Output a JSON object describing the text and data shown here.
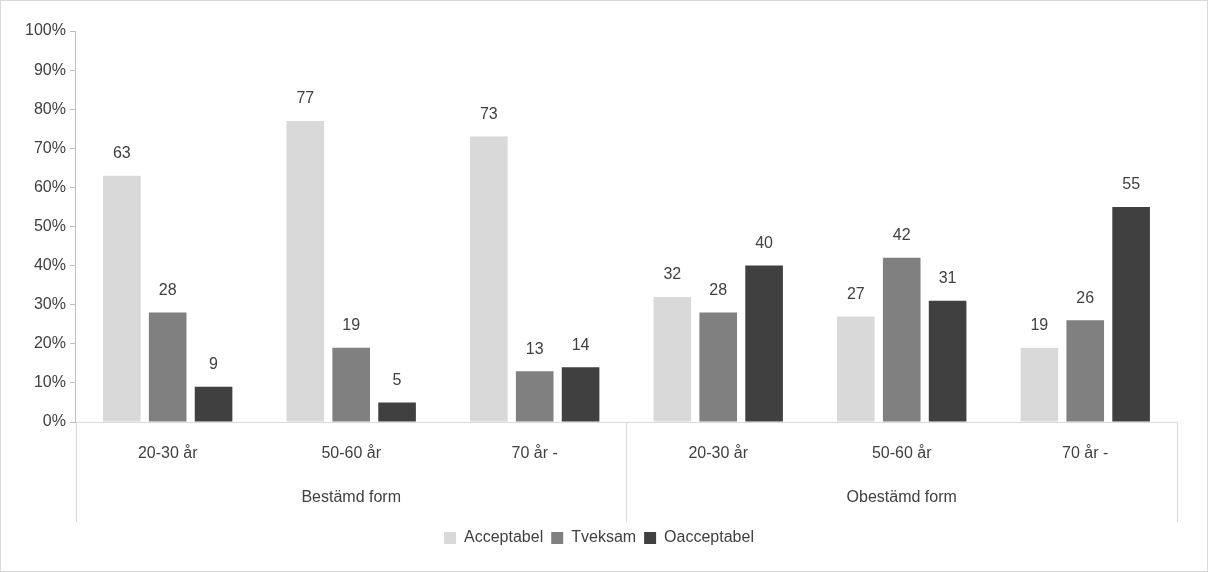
{
  "chart_data": {
    "type": "bar",
    "categories": [
      "20-30 år",
      "50-60 år",
      "70 år -",
      "20-30 år",
      "50-60 år",
      "70 år -"
    ],
    "series": [
      {
        "name": "Acceptabel",
        "color": "#d9d9d9",
        "values": [
          63,
          77,
          73,
          32,
          27,
          19
        ]
      },
      {
        "name": "Tveksam",
        "color": "#808080",
        "values": [
          28,
          19,
          13,
          28,
          42,
          26
        ]
      },
      {
        "name": "Oacceptabel",
        "color": "#404040",
        "values": [
          9,
          5,
          14,
          40,
          31,
          55
        ]
      }
    ],
    "ylim": [
      0,
      100
    ],
    "yticks": [
      {
        "value": 0,
        "label": "0%"
      },
      {
        "value": 10,
        "label": "10%"
      },
      {
        "value": 20,
        "label": "20%"
      },
      {
        "value": 30,
        "label": "30%"
      },
      {
        "value": 40,
        "label": "40%"
      },
      {
        "value": 50,
        "label": "50%"
      },
      {
        "value": 60,
        "label": "60%"
      },
      {
        "value": 70,
        "label": "70%"
      },
      {
        "value": 80,
        "label": "80%"
      },
      {
        "value": 90,
        "label": "90%"
      },
      {
        "value": 100,
        "label": "100%"
      }
    ],
    "annotations": [
      "Bestämd form",
      "Obestämd form"
    ],
    "data_labels": true,
    "grid": false,
    "legend": "bottom"
  }
}
